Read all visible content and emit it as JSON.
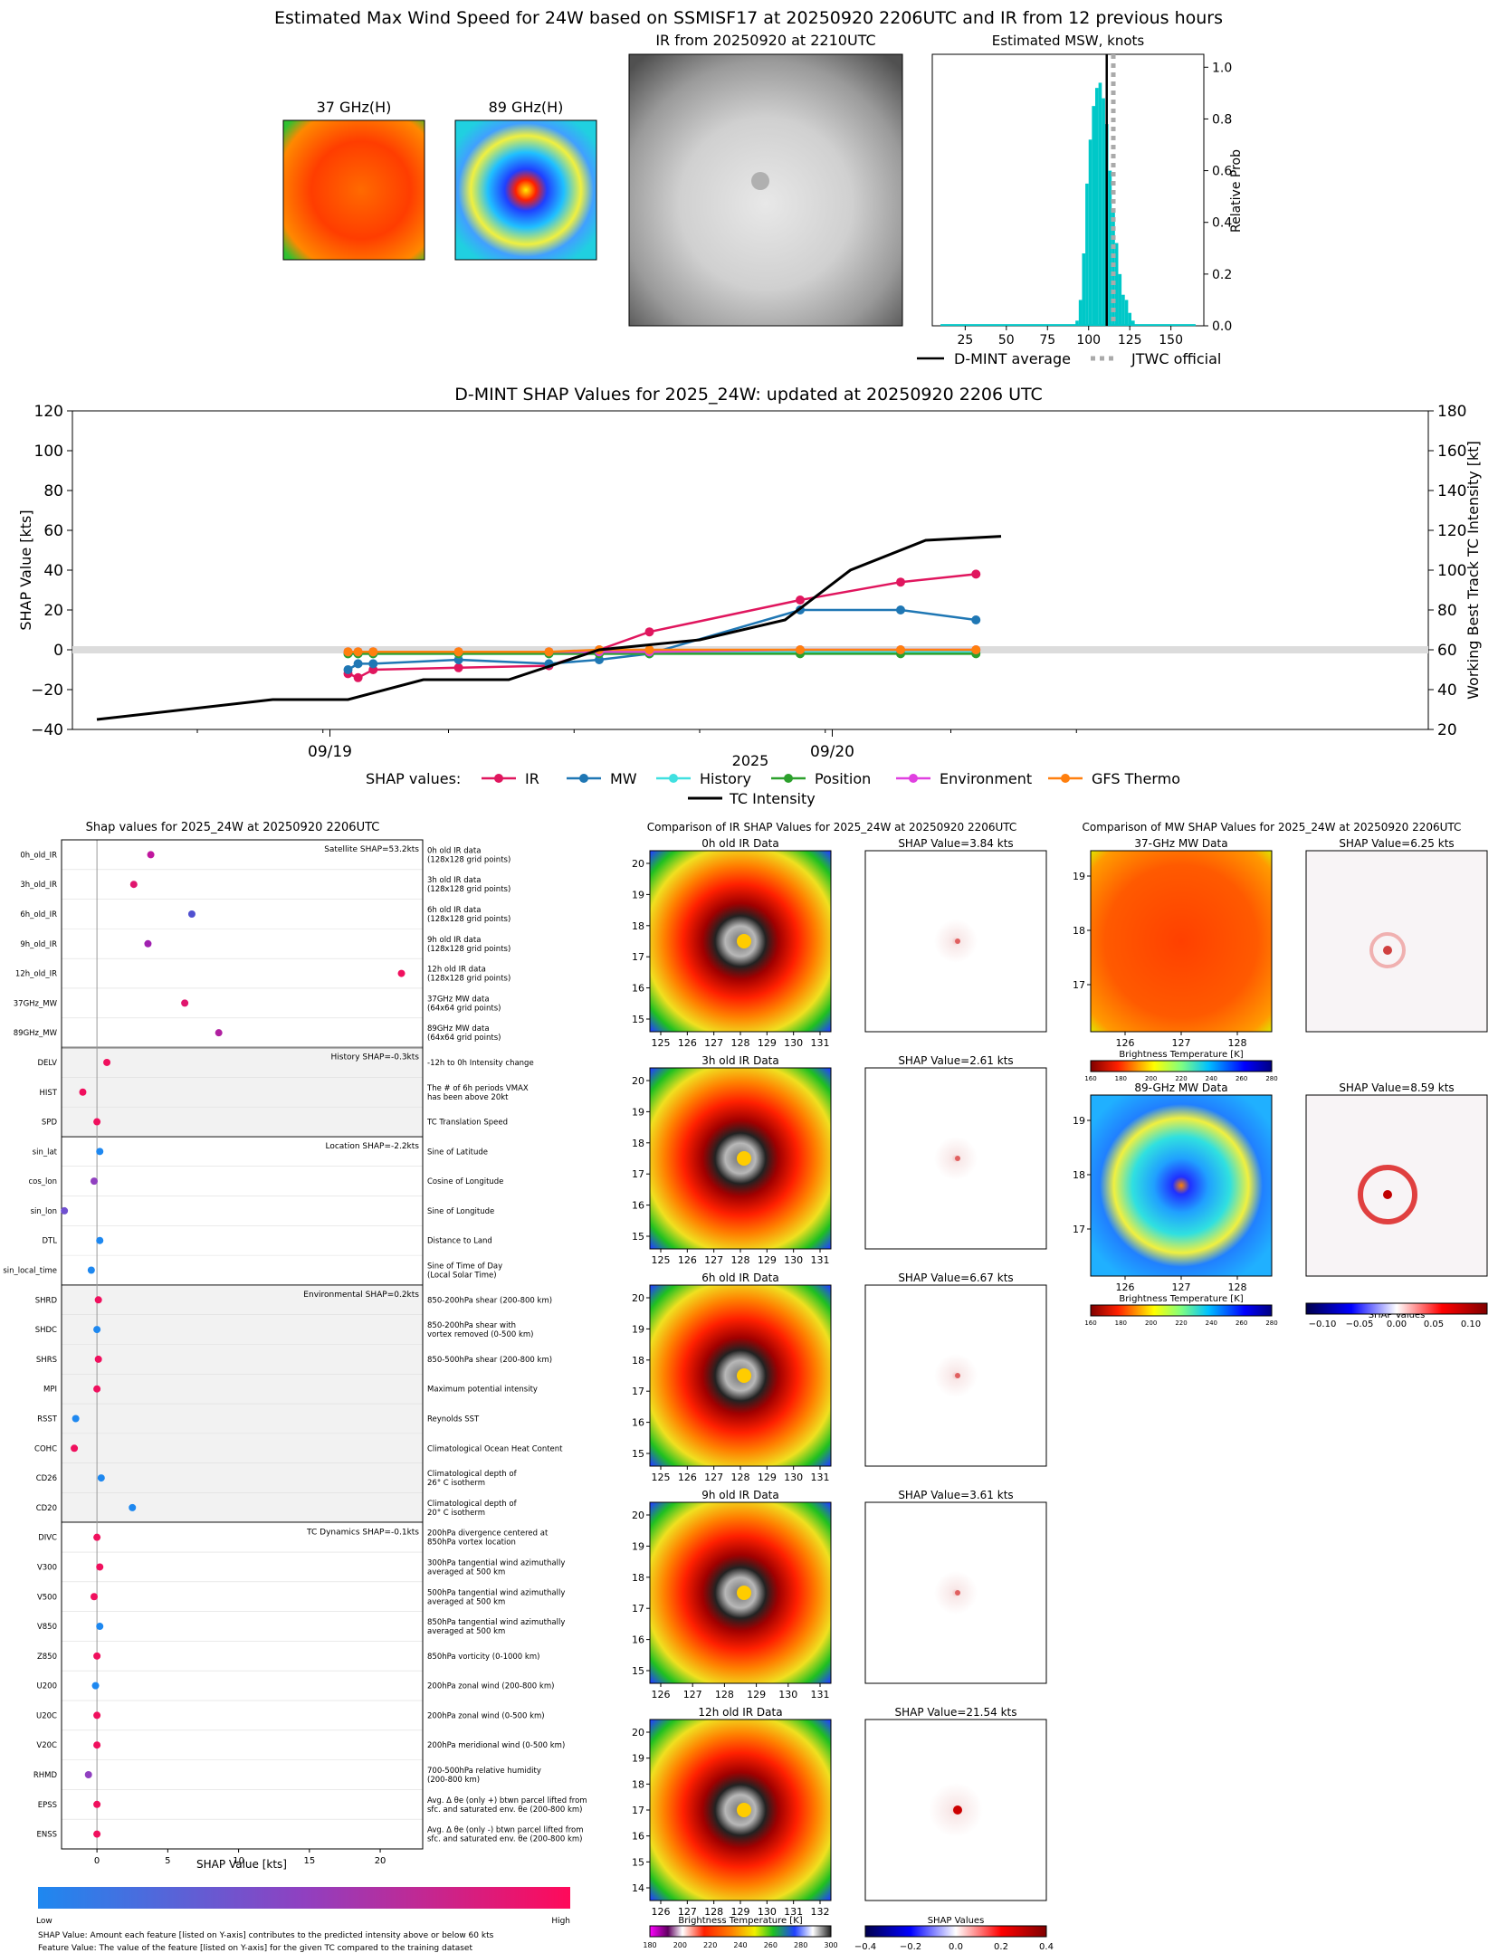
{
  "top": {
    "main_title": "Estimated Max Wind Speed for 24W based on SSMISF17 at 20250920 2206UTC and IR from 12 previous hours",
    "panel_37_title": "37 GHz(H)",
    "panel_89_title": "89 GHz(H)",
    "ir_title": "IR from 20250920 at 2210UTC",
    "msw_title": "Estimated MSW, knots",
    "msw_ylabel": "Relative Prob",
    "msw_xticks": [
      "25",
      "50",
      "75",
      "100",
      "125",
      "150"
    ],
    "msw_yticks": [
      "0.0",
      "0.2",
      "0.4",
      "0.6",
      "0.8",
      "1.0"
    ],
    "legend_dmint": "D-MINT average",
    "legend_jtwc": "JTWC official",
    "colors": {
      "hist_bar": "#00c8c8",
      "dmint_line": "#000000",
      "jtwc_line": "#aaaaaa"
    }
  },
  "timeseries": {
    "title": "D-MINT SHAP Values for 2025_24W: updated at 20250920 2206 UTC",
    "ylabel_left": "SHAP Value [kts]",
    "ylabel_right": "Working Best Track TC Intensity [kt]",
    "xlabel": "2025",
    "xtick_labels": [
      "09/19",
      "09/20"
    ],
    "left_ticks": [
      "120",
      "100",
      "80",
      "60",
      "40",
      "20",
      "0",
      "−20",
      "−40"
    ],
    "right_ticks": [
      "180",
      "160",
      "140",
      "120",
      "100",
      "80",
      "60",
      "40",
      "20"
    ],
    "legend_prefix": "SHAP values:",
    "legend_items": [
      "IR",
      "MW",
      "History",
      "Position",
      "Environment",
      "GFS Thermo"
    ],
    "legend_intensity": "TC Intensity"
  },
  "chart_data": [
    {
      "type": "bar",
      "title": "Estimated MSW, knots",
      "ylabel": "Relative Prob",
      "xlim": [
        5,
        170
      ],
      "ylim": [
        0,
        1.05
      ],
      "bin_centers": [
        93,
        95,
        97,
        99,
        101,
        103,
        105,
        107,
        109,
        111,
        113,
        115,
        117,
        119,
        121,
        123,
        125,
        127
      ],
      "values": [
        0.02,
        0.1,
        0.28,
        0.55,
        0.72,
        0.85,
        0.92,
        0.94,
        0.88,
        0.78,
        0.6,
        0.45,
        0.32,
        0.2,
        0.12,
        0.1,
        0.05,
        0.02
      ],
      "dmint_average": 111,
      "jtwc_official": 115
    },
    {
      "type": "line",
      "title": "D-MINT SHAP Values for 2025_24W: updated at 20250920 2206 UTC",
      "xlabel": "2025",
      "ylabel": "SHAP Value [kts]",
      "ylim": [
        -40,
        120
      ],
      "y2label": "Working Best Track TC Intensity [kt]",
      "y2lim": [
        20,
        180
      ],
      "x": [
        "09/18 12",
        "09/18 18",
        "09/19 00",
        "09/19 06",
        "09/19 12",
        "09/19 18",
        "09/20 00",
        "09/20 06",
        "09/20 12",
        "09/20 18",
        "09/21 00"
      ],
      "series": [
        {
          "name": "IR",
          "color": "#e0165e",
          "points": [
            [
              0.5,
              -12
            ],
            [
              0.52,
              -14
            ],
            [
              0.55,
              -10
            ],
            [
              0.72,
              -9
            ],
            [
              0.9,
              -8
            ],
            [
              1.0,
              0
            ],
            [
              1.1,
              9
            ],
            [
              1.4,
              25
            ],
            [
              1.6,
              34
            ],
            [
              1.75,
              38
            ]
          ]
        },
        {
          "name": "MW",
          "color": "#1f77b4",
          "points": [
            [
              0.5,
              -10
            ],
            [
              0.52,
              -7
            ],
            [
              0.55,
              -7
            ],
            [
              0.72,
              -5
            ],
            [
              0.9,
              -7
            ],
            [
              1.0,
              -5
            ],
            [
              1.1,
              -2
            ],
            [
              1.4,
              20
            ],
            [
              1.6,
              20
            ],
            [
              1.75,
              15
            ]
          ]
        },
        {
          "name": "History",
          "color": "#40e0e0",
          "points": [
            [
              0.5,
              -2
            ],
            [
              0.52,
              -2
            ],
            [
              0.55,
              -2
            ],
            [
              0.72,
              -2
            ],
            [
              0.9,
              -2
            ],
            [
              1.0,
              -2
            ],
            [
              1.1,
              -2
            ],
            [
              1.4,
              -1
            ],
            [
              1.6,
              -1
            ],
            [
              1.75,
              -1
            ]
          ]
        },
        {
          "name": "Position",
          "color": "#2ca02c",
          "points": [
            [
              0.5,
              -2
            ],
            [
              0.52,
              -2
            ],
            [
              0.55,
              -2
            ],
            [
              0.72,
              -2
            ],
            [
              0.9,
              -2
            ],
            [
              1.0,
              -2
            ],
            [
              1.1,
              -2
            ],
            [
              1.4,
              -2
            ],
            [
              1.6,
              -2
            ],
            [
              1.75,
              -2
            ]
          ]
        },
        {
          "name": "Environment",
          "color": "#e040e0",
          "points": [
            [
              0.5,
              -1
            ],
            [
              0.52,
              -1
            ],
            [
              0.55,
              -1
            ],
            [
              0.72,
              -1
            ],
            [
              0.9,
              -1
            ],
            [
              1.0,
              -1
            ],
            [
              1.1,
              -1
            ],
            [
              1.4,
              0
            ],
            [
              1.6,
              0
            ],
            [
              1.75,
              0
            ]
          ]
        },
        {
          "name": "GFS Thermo",
          "color": "#ff7f0e",
          "points": [
            [
              0.5,
              -1
            ],
            [
              0.52,
              -1
            ],
            [
              0.55,
              -1
            ],
            [
              0.72,
              -1
            ],
            [
              0.9,
              -1
            ],
            [
              1.0,
              0
            ],
            [
              1.1,
              0
            ],
            [
              1.4,
              0
            ],
            [
              1.6,
              0
            ],
            [
              1.75,
              0
            ]
          ]
        },
        {
          "name": "TC Intensity",
          "color": "#000000",
          "axis": "right",
          "points": [
            [
              0.0,
              25
            ],
            [
              0.35,
              35
            ],
            [
              0.5,
              35
            ],
            [
              0.65,
              45
            ],
            [
              0.82,
              45
            ],
            [
              1.0,
              60
            ],
            [
              1.2,
              65
            ],
            [
              1.37,
              75
            ],
            [
              1.5,
              100
            ],
            [
              1.65,
              115
            ],
            [
              1.8,
              117
            ]
          ]
        }
      ]
    },
    {
      "type": "scatter",
      "title": "Shap values for 2025_24W at 20250920 2206UTC",
      "xlabel": "SHAP Value [kts]",
      "xlim": [
        -2.5,
        23
      ],
      "features": [
        {
          "name": "0h_old_IR",
          "value": 3.8,
          "color": "#c0169e"
        },
        {
          "name": "3h_old_IR",
          "value": 2.6,
          "color": "#e0166e"
        },
        {
          "name": "6h_old_IR",
          "value": 6.7,
          "color": "#5050d0"
        },
        {
          "name": "9h_old_IR",
          "value": 3.6,
          "color": "#a020b0"
        },
        {
          "name": "12h_old_IR",
          "value": 21.5,
          "color": "#f0105e"
        },
        {
          "name": "37GHz_MW",
          "value": 6.2,
          "color": "#e0166e"
        },
        {
          "name": "89GHz_MW",
          "value": 8.6,
          "color": "#b020a0"
        },
        {
          "name": "DELV",
          "value": 0.7,
          "color": "#f0105e"
        },
        {
          "name": "HIST",
          "value": -1.0,
          "color": "#f0105e"
        },
        {
          "name": "SPD",
          "value": 0.0,
          "color": "#f0105e"
        },
        {
          "name": "sin_lat",
          "value": 0.2,
          "color": "#1e88f0"
        },
        {
          "name": "cos_lon",
          "value": -0.2,
          "color": "#9040c0"
        },
        {
          "name": "sin_lon",
          "value": -2.3,
          "color": "#7050d0"
        },
        {
          "name": "DTL",
          "value": 0.2,
          "color": "#1e88f0"
        },
        {
          "name": "sin_local_time",
          "value": -0.4,
          "color": "#1e88f0"
        },
        {
          "name": "SHRD",
          "value": 0.1,
          "color": "#f0105e"
        },
        {
          "name": "SHDC",
          "value": 0.0,
          "color": "#1e88f0"
        },
        {
          "name": "SHRS",
          "value": 0.1,
          "color": "#f0105e"
        },
        {
          "name": "MPI",
          "value": 0.0,
          "color": "#f0105e"
        },
        {
          "name": "RSST",
          "value": -1.5,
          "color": "#1e88f0"
        },
        {
          "name": "COHC",
          "value": -1.6,
          "color": "#f0105e"
        },
        {
          "name": "CD26",
          "value": 0.3,
          "color": "#1e88f0"
        },
        {
          "name": "CD20",
          "value": 2.5,
          "color": "#1e88f0"
        },
        {
          "name": "DIVC",
          "value": 0.0,
          "color": "#f0105e"
        },
        {
          "name": "V300",
          "value": 0.2,
          "color": "#f0105e"
        },
        {
          "name": "V500",
          "value": -0.2,
          "color": "#f0105e"
        },
        {
          "name": "V850",
          "value": 0.2,
          "color": "#1e88f0"
        },
        {
          "name": "Z850",
          "value": 0.0,
          "color": "#f0105e"
        },
        {
          "name": "U200",
          "value": -0.1,
          "color": "#1e88f0"
        },
        {
          "name": "U20C",
          "value": 0.0,
          "color": "#f0105e"
        },
        {
          "name": "V20C",
          "value": 0.0,
          "color": "#f0105e"
        },
        {
          "name": "RHMD",
          "value": -0.6,
          "color": "#9040c0"
        },
        {
          "name": "EPSS",
          "value": 0.0,
          "color": "#f0105e"
        },
        {
          "name": "ENSS",
          "value": 0.0,
          "color": "#f0105e"
        }
      ]
    }
  ],
  "shap_panel": {
    "title": "Shap values for 2025_24W at 20250920 2206UTC",
    "xlabel": "SHAP Value [kts]",
    "xticks": [
      "0",
      "5",
      "10",
      "15",
      "20"
    ],
    "group_labels": [
      "Satellite SHAP=53.2kts",
      "History SHAP=-0.3kts",
      "Location SHAP=-2.2kts",
      "Environmental SHAP=0.2kts",
      "TC Dynamics SHAP=-0.1kts"
    ],
    "descriptions": [
      [
        "0h old IR data",
        "(128x128 grid points)"
      ],
      [
        "3h old IR data",
        "(128x128 grid points)"
      ],
      [
        "6h old IR data",
        "(128x128 grid points)"
      ],
      [
        "9h old IR data",
        "(128x128 grid points)"
      ],
      [
        "12h old IR data",
        "(128x128 grid points)"
      ],
      [
        "37GHz MW data",
        "(64x64 grid points)"
      ],
      [
        "89GHz MW data",
        "(64x64 grid points)"
      ],
      [
        "-12h to 0h Intensity change"
      ],
      [
        "The # of 6h periods VMAX",
        "has been above 20kt"
      ],
      [
        "TC Translation Speed"
      ],
      [
        "Sine of Latitude"
      ],
      [
        "Cosine of Longitude"
      ],
      [
        "Sine of Longitude"
      ],
      [
        "Distance to Land"
      ],
      [
        "Sine of Time of Day",
        "(Local Solar Time)"
      ],
      [
        "850-200hPa shear (200-800 km)"
      ],
      [
        "850-200hPa shear with",
        "vortex removed (0-500 km)"
      ],
      [
        "850-500hPa shear (200-800 km)"
      ],
      [
        "Maximum potential intensity"
      ],
      [
        "Reynolds SST"
      ],
      [
        "Climatological Ocean Heat Content"
      ],
      [
        "Climatological depth of",
        "26° C isotherm"
      ],
      [
        "Climatological depth of",
        "20° C isotherm"
      ],
      [
        "200hPa divergence centered at",
        "850hPa vortex location"
      ],
      [
        "300hPa tangential wind azimuthally",
        "averaged at 500 km"
      ],
      [
        "500hPa tangential wind azimuthally",
        "averaged at 500 km"
      ],
      [
        "850hPa tangential wind azimuthally",
        "averaged at 500 km"
      ],
      [
        "850hPa vorticity (0-1000 km)"
      ],
      [
        "200hPa zonal wind (200-800 km)"
      ],
      [
        "200hPa zonal wind (0-500 km)"
      ],
      [
        "200hPa meridional wind (0-500 km)"
      ],
      [
        "700-500hPa relative humidity",
        "(200-800 km)"
      ],
      [
        "Avg. Δ θe (only +) btwn parcel lifted from",
        "sfc. and saturated env. θe (200-800 km)"
      ],
      [
        "Avg. Δ θe (only -) btwn parcel lifted from",
        "sfc. and saturated env. θe (200-800 km)"
      ]
    ],
    "colorbar_low": "Low",
    "colorbar_high": "High",
    "footnote_1": "SHAP Value: Amount each feature [listed on Y-axis] contributes to the predicted intensity above or below 60 kts",
    "footnote_2": "Feature Value: The value of the feature [listed on Y-axis] for the given TC compared to the training dataset"
  },
  "ir_comparison": {
    "title": "Comparison of IR SHAP Values for 2025_24W at 20250920 2206UTC",
    "panels": [
      {
        "label": "0h old IR Data",
        "shap": "SHAP Value=3.84 kts",
        "yticks": [
          "20",
          "19",
          "18",
          "17",
          "16",
          "15"
        ],
        "xticks": [
          "125",
          "126",
          "127",
          "128",
          "129",
          "130",
          "131"
        ]
      },
      {
        "label": "3h old IR Data",
        "shap": "SHAP Value=2.61 kts",
        "yticks": [
          "20",
          "19",
          "18",
          "17",
          "16",
          "15"
        ],
        "xticks": [
          "125",
          "126",
          "127",
          "128",
          "129",
          "130",
          "131"
        ]
      },
      {
        "label": "6h old IR Data",
        "shap": "SHAP Value=6.67 kts",
        "yticks": [
          "20",
          "19",
          "18",
          "17",
          "16",
          "15"
        ],
        "xticks": [
          "125",
          "126",
          "127",
          "128",
          "129",
          "130",
          "131"
        ]
      },
      {
        "label": "9h old IR Data",
        "shap": "SHAP Value=3.61 kts",
        "yticks": [
          "20",
          "19",
          "18",
          "17",
          "16",
          "15"
        ],
        "xticks": [
          "126",
          "127",
          "128",
          "129",
          "130",
          "131"
        ]
      },
      {
        "label": "12h old IR Data",
        "shap": "SHAP Value=21.54 kts",
        "yticks": [
          "20",
          "19",
          "18",
          "17",
          "16",
          "15",
          "14"
        ],
        "xticks": [
          "126",
          "127",
          "128",
          "129",
          "130",
          "131",
          "132"
        ]
      }
    ],
    "cbar_label": "Brightness Temperature [K]",
    "cbar_ticks": [
      "180",
      "200",
      "220",
      "240",
      "260",
      "280",
      "300"
    ],
    "shap_cbar_label": "SHAP Values",
    "shap_cbar_ticks": [
      "−0.4",
      "−0.2",
      "0.0",
      "0.2",
      "0.4"
    ]
  },
  "mw_comparison": {
    "title": "Comparison of MW SHAP Values for 2025_24W at 20250920 2206UTC",
    "panels": [
      {
        "label": "37-GHz MW Data",
        "shap": "SHAP Value=6.25 kts",
        "yticks": [
          "19",
          "18",
          "17"
        ],
        "xticks": [
          "126",
          "127",
          "128"
        ]
      },
      {
        "label": "89-GHz MW Data",
        "shap": "SHAP Value=8.59 kts",
        "yticks": [
          "19",
          "18",
          "17"
        ],
        "xticks": [
          "126",
          "127",
          "128"
        ]
      }
    ],
    "cbar_label": "Brightness Temperature [K]",
    "cbar_ticks": [
      "160",
      "180",
      "200",
      "220",
      "240",
      "260",
      "280"
    ],
    "shap_cbar_label": "SHAP Values",
    "shap_cbar_ticks": [
      "−0.10",
      "−0.05",
      "0.00",
      "0.05",
      "0.10"
    ]
  }
}
